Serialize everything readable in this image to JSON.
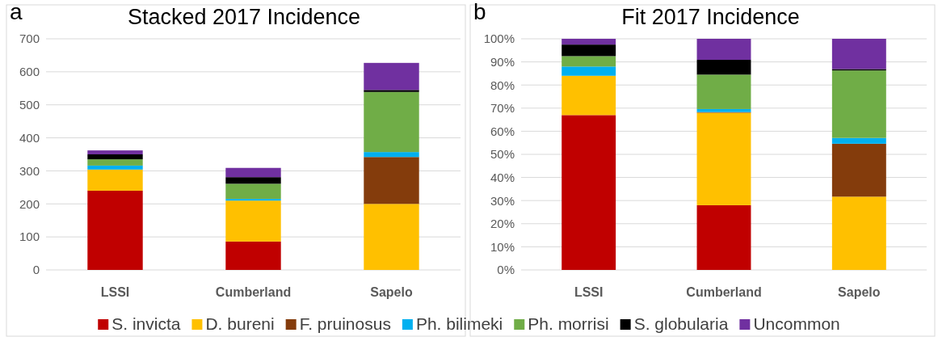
{
  "chart_data": [
    {
      "type": "bar",
      "title": "Stacked 2017 Incidence",
      "annotations": [
        "a"
      ],
      "categories": [
        "LSSI",
        "Cumberland",
        "Sapelo"
      ],
      "stacked": true,
      "ylim": [
        0,
        700
      ],
      "yticks": [
        0,
        100,
        200,
        300,
        400,
        500,
        600,
        700
      ],
      "grid": "y",
      "legend": "bottom",
      "series": [
        {
          "name": "S. invicta",
          "color": "#c00000",
          "values": [
            240,
            86,
            0
          ]
        },
        {
          "name": "D. bureni",
          "color": "#ffc000",
          "values": [
            64,
            124,
            200
          ]
        },
        {
          "name": "F. pruinosus",
          "color": "#843c0c",
          "values": [
            0,
            null,
            142
          ]
        },
        {
          "name": "Ph. bilimeki",
          "color": "#00b0f0",
          "values": [
            12,
            5,
            15
          ]
        },
        {
          "name": "Ph. morrisi",
          "color": "#70ad47",
          "values": [
            19,
            46,
            182
          ]
        },
        {
          "name": "S. globularia",
          "color": "#000000",
          "values": [
            15,
            20,
            6
          ]
        },
        {
          "name": "Uncommon",
          "color": "#7030a0",
          "values": [
            12,
            28,
            82
          ]
        }
      ]
    },
    {
      "type": "bar",
      "title": "Fit 2017 Incidence",
      "annotations": [
        "b"
      ],
      "categories": [
        "LSSI",
        "Cumberland",
        "Sapelo"
      ],
      "stacked": true,
      "ylim": [
        0,
        100
      ],
      "yticks": [
        {
          "value": 0,
          "label": "0%"
        },
        {
          "value": 10,
          "label": "10%"
        },
        {
          "value": 20,
          "label": "20%"
        },
        {
          "value": 30,
          "label": "30%"
        },
        {
          "value": 40,
          "label": "40%"
        },
        {
          "value": 50,
          "label": "50%"
        },
        {
          "value": 60,
          "label": "60%"
        },
        {
          "value": 70,
          "label": "70%"
        },
        {
          "value": 80,
          "label": "80%"
        },
        {
          "value": 90,
          "label": "90%"
        },
        {
          "value": 100,
          "label": "100%"
        }
      ],
      "grid": "y",
      "series": [
        {
          "color": "#c00000",
          "values": [
            67,
            28,
            0
          ]
        },
        {
          "color": "#ffc000",
          "values": [
            17,
            40,
            31.7
          ]
        },
        {
          "color": "#843c0c",
          "values": [
            0,
            0.3,
            22.9
          ]
        },
        {
          "color": "#00b0f0",
          "values": [
            4,
            1.3,
            2.5
          ]
        },
        {
          "color": "#70ad47",
          "values": [
            4.5,
            14.9,
            29.2
          ]
        },
        {
          "color": "#000000",
          "values": [
            5,
            6.4,
            0.6
          ]
        },
        {
          "color": "#7030a0",
          "values": [
            2.5,
            9.1,
            13.1
          ]
        }
      ]
    }
  ]
}
